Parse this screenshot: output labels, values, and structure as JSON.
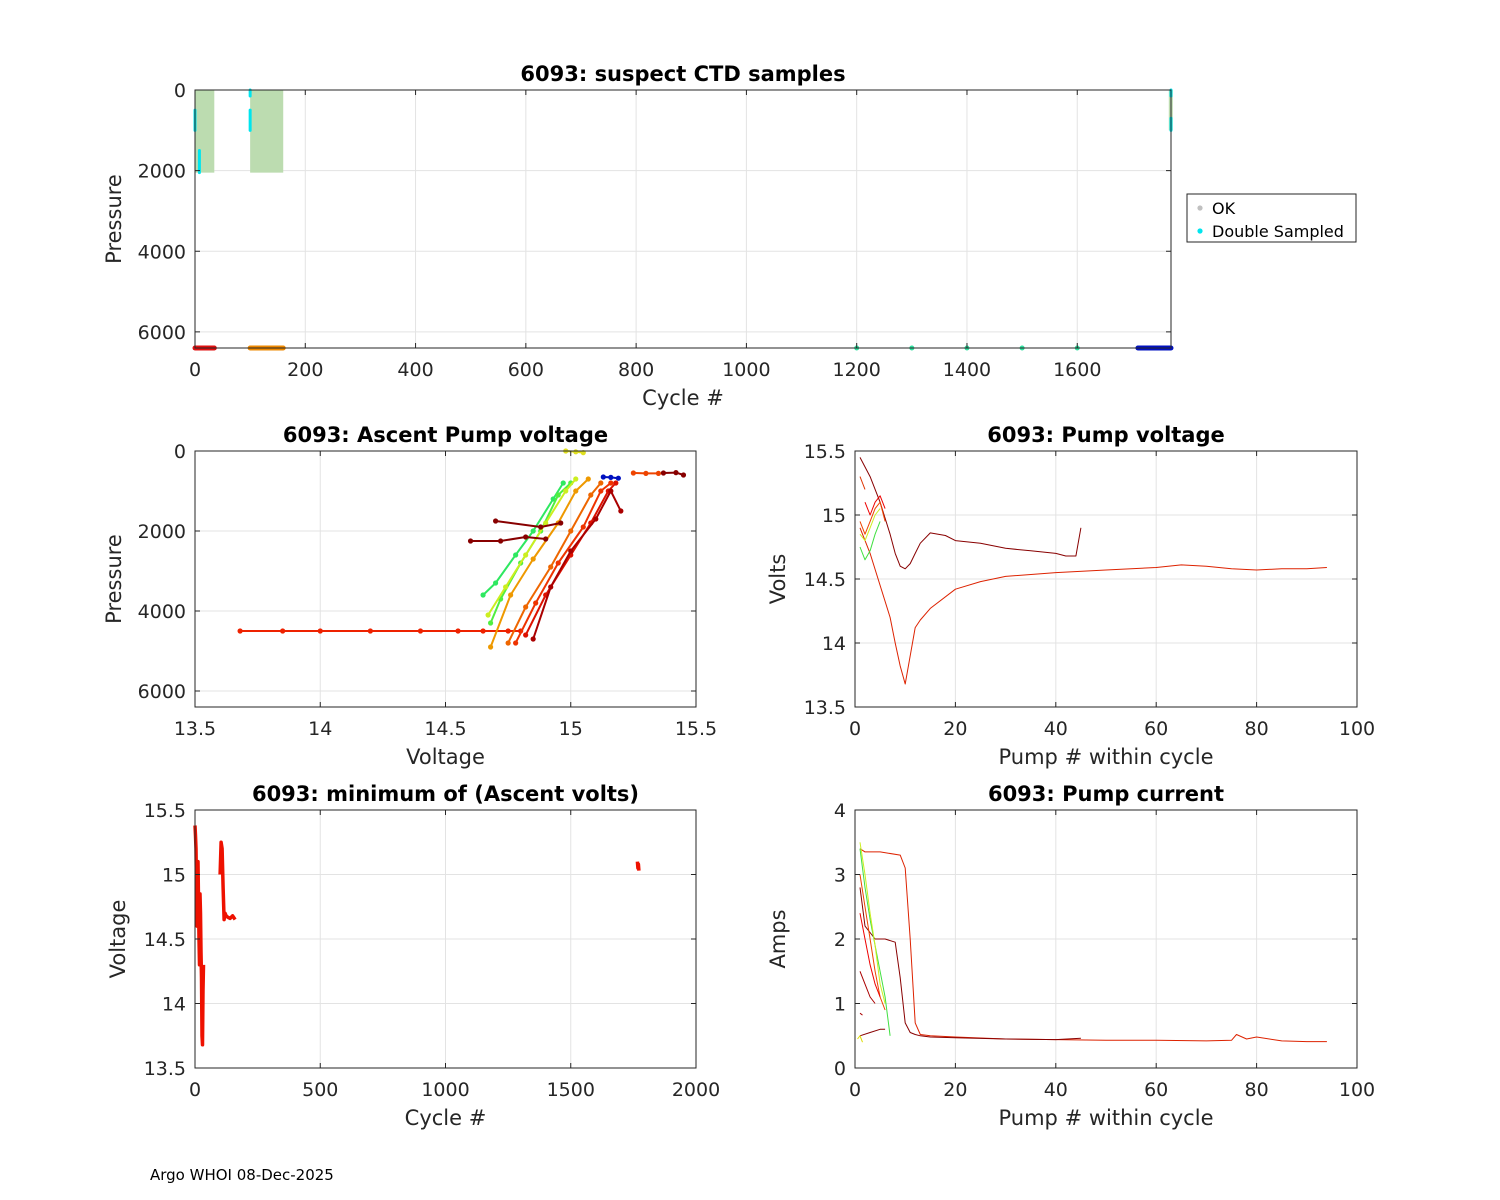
{
  "footer": "Argo WHOI 08-Dec-2025",
  "colors": {
    "ok": "#c0c0c0",
    "double_sampled": "#00e5ee",
    "fill": "#bcdcb0",
    "red": "#ee2200",
    "darkred": "#880000"
  },
  "chart_data": [
    {
      "id": "suspect",
      "type": "scatter",
      "title": "6093: suspect CTD samples",
      "xlabel": "Cycle #",
      "ylabel": "Pressure",
      "xlim": [
        0,
        1770
      ],
      "ylim": [
        0,
        6400
      ],
      "y_reversed": true,
      "xticks": [
        0,
        200,
        400,
        600,
        800,
        1000,
        1200,
        1400,
        1600
      ],
      "yticks": [
        0,
        2000,
        4000,
        6000
      ],
      "legend": {
        "position": "right",
        "entries": [
          {
            "label": "OK",
            "color": "#c0c0c0"
          },
          {
            "label": "Double Sampled",
            "color": "#00e5ee"
          }
        ]
      },
      "ok_ranges": [
        {
          "x": [
            0,
            35
          ],
          "p": [
            0,
            2050
          ]
        },
        {
          "x": [
            100,
            160
          ],
          "p": [
            0,
            2050
          ]
        },
        {
          "x": [
            1766,
            1770
          ],
          "p": [
            0,
            1000
          ]
        }
      ],
      "double_sampled": [
        {
          "x": 0,
          "p": [
            500,
            1000
          ]
        },
        {
          "x": 8,
          "p": [
            1500,
            2050
          ]
        },
        {
          "x": 100,
          "p": [
            0,
            150
          ]
        },
        {
          "x": 100,
          "p": [
            500,
            1000
          ]
        },
        {
          "x": 1770,
          "p": [
            0,
            150
          ]
        },
        {
          "x": 1770,
          "p": [
            700,
            1000
          ]
        }
      ],
      "bottom_markers": [
        {
          "x": [
            0,
            35
          ],
          "color": "#e01010"
        },
        {
          "x": [
            100,
            160
          ],
          "color": "#ee8800"
        },
        {
          "x": [
            1200,
            1200
          ],
          "color": "#30e0a0"
        },
        {
          "x": [
            1300,
            1300
          ],
          "color": "#30e0a0"
        },
        {
          "x": [
            1400,
            1400
          ],
          "color": "#30e0a0"
        },
        {
          "x": [
            1500,
            1500
          ],
          "color": "#30e0a0"
        },
        {
          "x": [
            1600,
            1600
          ],
          "color": "#30e0a0"
        },
        {
          "x": [
            1710,
            1770
          ],
          "color": "#0010c0"
        }
      ]
    },
    {
      "id": "ascent",
      "type": "line",
      "title": "6093: Ascent Pump voltage",
      "xlabel": "Voltage",
      "ylabel": "Pressure",
      "xlim": [
        13.5,
        15.5
      ],
      "ylim": [
        0,
        6400
      ],
      "y_reversed": true,
      "xticks": [
        13.5,
        14,
        14.5,
        15,
        15.5
      ],
      "yticks": [
        0,
        2000,
        4000,
        6000
      ],
      "series": [
        {
          "color": "#ee2200",
          "x": [
            13.68,
            13.85,
            14.0,
            14.2,
            14.4,
            14.55,
            14.65,
            14.75,
            14.8
          ],
          "y": [
            4500,
            4500,
            4500,
            4500,
            4500,
            4500,
            4500,
            4500,
            4500
          ]
        },
        {
          "color": "#2ee860",
          "x": [
            14.65,
            14.7,
            14.78,
            14.85,
            14.93,
            14.97
          ],
          "y": [
            3600,
            3300,
            2600,
            2000,
            1200,
            800
          ]
        },
        {
          "color": "#50ee40",
          "x": [
            14.68,
            14.72,
            14.8,
            14.88,
            14.95,
            15.0
          ],
          "y": [
            4300,
            3700,
            2800,
            2000,
            1100,
            800
          ]
        },
        {
          "color": "#ccee20",
          "x": [
            14.67,
            14.74,
            14.82,
            14.9,
            14.98,
            15.02
          ],
          "y": [
            4100,
            3400,
            2600,
            1800,
            1000,
            700
          ]
        },
        {
          "color": "#ee9900",
          "x": [
            14.68,
            14.76,
            14.85,
            14.95,
            15.02,
            15.07
          ],
          "y": [
            4900,
            3600,
            2700,
            1800,
            1000,
            700
          ]
        },
        {
          "color": "#ee6600",
          "x": [
            14.75,
            14.82,
            14.92,
            15.0,
            15.08,
            15.12
          ],
          "y": [
            4800,
            3900,
            2900,
            2000,
            1100,
            800
          ]
        },
        {
          "color": "#ee3300",
          "x": [
            14.78,
            14.86,
            14.95,
            15.05,
            15.12,
            15.16
          ],
          "y": [
            4800,
            3800,
            2800,
            1900,
            1000,
            800
          ]
        },
        {
          "color": "#dd1100",
          "x": [
            14.82,
            14.9,
            15.0,
            15.08,
            15.15,
            15.18
          ],
          "y": [
            4600,
            3600,
            2600,
            1800,
            1000,
            800
          ]
        },
        {
          "color": "#aa0000",
          "x": [
            14.85,
            14.92,
            15.0,
            15.1,
            15.16,
            15.2
          ],
          "y": [
            4700,
            3400,
            2500,
            1700,
            1000,
            1500
          ]
        },
        {
          "color": "#880000",
          "x": [
            14.6,
            14.72,
            14.82,
            14.9
          ],
          "y": [
            2250,
            2250,
            2150,
            2200
          ]
        },
        {
          "color": "#880000",
          "x": [
            14.7,
            14.88,
            14.96
          ],
          "y": [
            1750,
            1900,
            1800
          ]
        },
        {
          "color": "#ee4400",
          "x": [
            15.25,
            15.3,
            15.35
          ],
          "y": [
            550,
            560,
            560
          ]
        },
        {
          "color": "#880000",
          "x": [
            15.37,
            15.42,
            15.45
          ],
          "y": [
            550,
            540,
            600
          ]
        },
        {
          "color": "#e0e020",
          "x": [
            14.98,
            15.02,
            15.05
          ],
          "y": [
            0,
            20,
            40
          ]
        },
        {
          "color": "#0010c0",
          "x": [
            15.13,
            15.16,
            15.19
          ],
          "y": [
            650,
            660,
            680
          ]
        }
      ]
    },
    {
      "id": "pumpvolt",
      "type": "line",
      "title": "6093: Pump voltage",
      "xlabel": "Pump # within cycle",
      "ylabel": "Volts",
      "xlim": [
        0,
        100
      ],
      "ylim": [
        13.5,
        15.5
      ],
      "xticks": [
        0,
        20,
        40,
        60,
        80,
        100
      ],
      "yticks": [
        13.5,
        14,
        14.5,
        15,
        15.5
      ],
      "series": [
        {
          "color": "#880000",
          "x": [
            1,
            3,
            5,
            7,
            8,
            9,
            10,
            11,
            12,
            13,
            15,
            18,
            20,
            25,
            30,
            35,
            40,
            42,
            44,
            45
          ],
          "y": [
            15.45,
            15.3,
            15.1,
            14.85,
            14.7,
            14.6,
            14.58,
            14.62,
            14.7,
            14.78,
            14.86,
            14.84,
            14.8,
            14.78,
            14.74,
            14.72,
            14.7,
            14.68,
            14.68,
            14.9
          ]
        },
        {
          "color": "#dd2200",
          "x": [
            1,
            3,
            5,
            7,
            8,
            9,
            10,
            11,
            12,
            13,
            15,
            20,
            25,
            30,
            40,
            50,
            60,
            65,
            70,
            75,
            80,
            85,
            90,
            94
          ],
          "y": [
            14.9,
            14.7,
            14.45,
            14.2,
            14.0,
            13.82,
            13.68,
            13.9,
            14.12,
            14.18,
            14.27,
            14.42,
            14.48,
            14.52,
            14.55,
            14.57,
            14.59,
            14.61,
            14.6,
            14.58,
            14.57,
            14.58,
            14.58,
            14.59
          ]
        },
        {
          "color": "#40e040",
          "x": [
            1,
            2,
            3,
            4,
            5
          ],
          "y": [
            14.75,
            14.65,
            14.72,
            14.85,
            14.95
          ]
        },
        {
          "color": "#ee4400",
          "x": [
            1,
            2,
            3,
            4,
            5,
            6
          ],
          "y": [
            14.95,
            14.85,
            14.95,
            15.05,
            15.1,
            14.95
          ]
        },
        {
          "color": "#ee0000",
          "x": [
            2,
            3,
            4,
            5,
            6
          ],
          "y": [
            15.1,
            15.0,
            15.1,
            15.15,
            15.05
          ]
        },
        {
          "color": "#dd3300",
          "x": [
            1,
            1.5,
            2
          ],
          "y": [
            15.3,
            15.25,
            15.2
          ]
        },
        {
          "color": "#ccee20",
          "x": [
            1,
            2,
            3,
            4,
            5
          ],
          "y": [
            14.85,
            14.8,
            14.9,
            15.0,
            15.05
          ]
        }
      ]
    },
    {
      "id": "minvolt",
      "type": "line",
      "title": "6093: minimum of (Ascent volts)",
      "xlabel": "Cycle #",
      "ylabel": "Voltage",
      "xlim": [
        0,
        2000
      ],
      "ylim": [
        13.5,
        15.5
      ],
      "xticks": [
        0,
        500,
        1000,
        1500,
        2000
      ],
      "yticks": [
        13.5,
        14,
        14.5,
        15,
        15.5
      ],
      "series": [
        {
          "color": "#ee1100",
          "x": [
            0,
            2,
            4,
            6,
            8,
            10,
            12,
            14,
            16,
            18,
            20,
            22,
            24,
            26,
            28,
            30,
            32,
            34
          ],
          "y": [
            15.38,
            15.3,
            15.2,
            14.9,
            14.6,
            15.05,
            15.1,
            14.8,
            14.5,
            14.3,
            14.85,
            14.7,
            14.4,
            14.2,
            13.75,
            13.68,
            14.1,
            14.3
          ]
        },
        {
          "color": "#ee1100",
          "x": [
            100,
            104,
            108,
            112,
            116,
            120,
            124,
            130,
            140,
            150,
            160
          ],
          "y": [
            15.0,
            15.25,
            15.2,
            14.9,
            14.65,
            14.7,
            14.68,
            14.67,
            14.66,
            14.68,
            14.65
          ]
        },
        {
          "color": "#ee1100",
          "x": [
            1766,
            1768,
            1770,
            1772
          ],
          "y": [
            15.1,
            15.05,
            15.08,
            15.03
          ]
        }
      ]
    },
    {
      "id": "pumpcurrent",
      "type": "line",
      "title": "6093: Pump current",
      "xlabel": "Pump # within cycle",
      "ylabel": "Amps",
      "xlim": [
        0,
        100
      ],
      "ylim": [
        0,
        4
      ],
      "xticks": [
        0,
        20,
        40,
        60,
        80,
        100
      ],
      "yticks": [
        0,
        1,
        2,
        3,
        4
      ],
      "series": [
        {
          "color": "#dd2200",
          "x": [
            1,
            2,
            5,
            9,
            10,
            11,
            12,
            13,
            15,
            20,
            30,
            40,
            50,
            60,
            70,
            75,
            76,
            78,
            80,
            85,
            90,
            94
          ],
          "y": [
            3.4,
            3.35,
            3.35,
            3.3,
            3.1,
            2.0,
            0.7,
            0.52,
            0.5,
            0.48,
            0.45,
            0.44,
            0.43,
            0.43,
            0.42,
            0.43,
            0.52,
            0.45,
            0.48,
            0.42,
            0.41,
            0.41
          ]
        },
        {
          "color": "#880000",
          "x": [
            1,
            2,
            4,
            6,
            8,
            9,
            10,
            11,
            12,
            13,
            15,
            20,
            30,
            40,
            45
          ],
          "y": [
            2.8,
            2.2,
            2.0,
            2.0,
            1.95,
            1.4,
            0.7,
            0.55,
            0.52,
            0.5,
            0.48,
            0.47,
            0.45,
            0.44,
            0.46
          ]
        },
        {
          "color": "#40e040",
          "x": [
            1,
            2,
            3,
            4,
            5,
            6,
            7
          ],
          "y": [
            3.4,
            2.8,
            2.3,
            1.9,
            1.5,
            1.1,
            0.5
          ]
        },
        {
          "color": "#ccee20",
          "x": [
            1,
            2,
            3,
            4,
            5,
            6
          ],
          "y": [
            3.5,
            3.0,
            2.4,
            1.9,
            1.3,
            1.0
          ]
        },
        {
          "color": "#ee4400",
          "x": [
            1,
            2,
            3,
            4,
            5,
            6
          ],
          "y": [
            3.0,
            2.5,
            2.0,
            1.5,
            1.1,
            0.9
          ]
        },
        {
          "color": "#ee0000",
          "x": [
            1,
            2,
            3,
            4,
            5
          ],
          "y": [
            2.4,
            2.0,
            1.6,
            1.3,
            1.1
          ]
        },
        {
          "color": "#aa0000",
          "x": [
            1,
            2,
            3,
            4
          ],
          "y": [
            1.5,
            1.3,
            1.1,
            1.0
          ]
        },
        {
          "color": "#880000",
          "x": [
            1,
            3,
            5,
            6
          ],
          "y": [
            0.5,
            0.55,
            0.6,
            0.6
          ]
        },
        {
          "color": "#dddd00",
          "x": [
            0.5,
            1,
            1.5
          ],
          "y": [
            0.45,
            0.5,
            0.4
          ]
        },
        {
          "color": "#aa0000",
          "x": [
            1,
            1.5
          ],
          "y": [
            0.85,
            0.82
          ]
        }
      ]
    }
  ]
}
